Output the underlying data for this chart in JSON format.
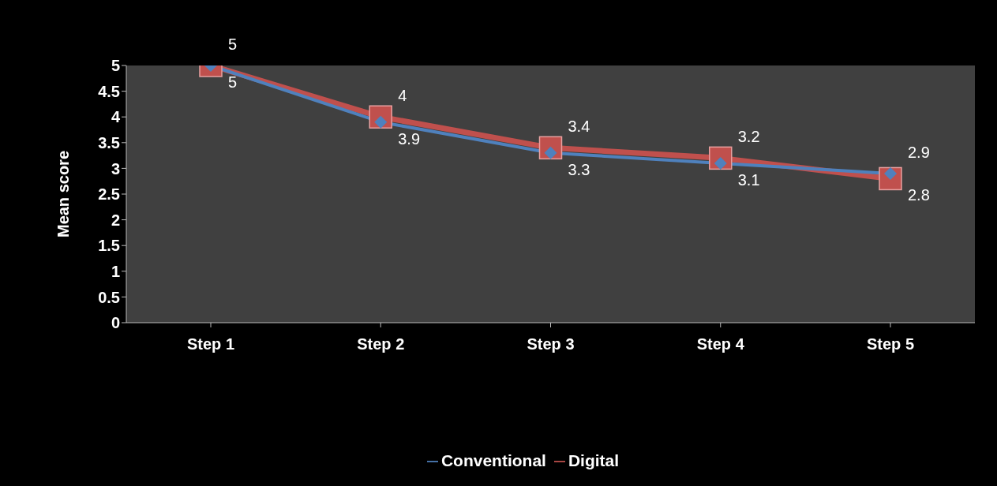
{
  "chart_data": {
    "type": "line",
    "ylabel": "Mean score",
    "categories": [
      "Step 1",
      "Step 2",
      "Step 3",
      "Step 4",
      "Step 5"
    ],
    "series": [
      {
        "name": "Conventional",
        "color": "#4f81bd",
        "marker": "diamond",
        "values": [
          5,
          3.9,
          3.3,
          3.1,
          2.9
        ]
      },
      {
        "name": "Digital",
        "color": "#c0504d",
        "marker": "square",
        "values": [
          5,
          4,
          3.4,
          3.2,
          2.8
        ]
      }
    ],
    "ylim": [
      0,
      5
    ],
    "yticks": [
      0,
      0.5,
      1,
      1.5,
      2,
      2.5,
      3,
      3.5,
      4,
      4.5,
      5
    ],
    "grid": false,
    "legend": "bottom",
    "data_labels": true
  }
}
